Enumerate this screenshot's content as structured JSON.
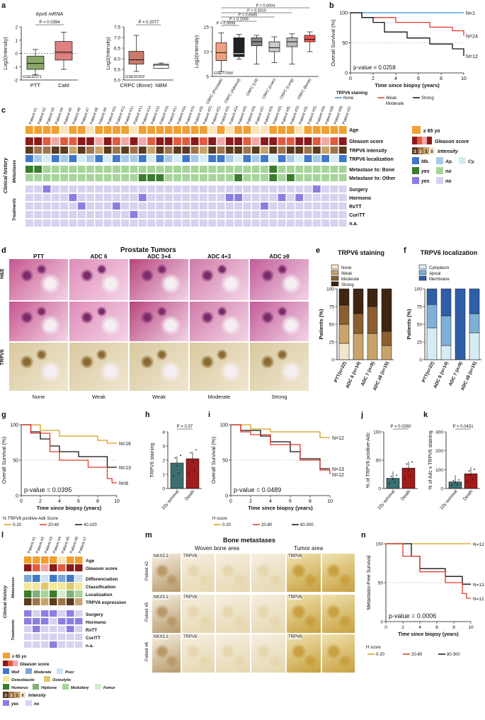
{
  "panel_letters": [
    "a",
    "b",
    "c",
    "d",
    "e",
    "f",
    "g",
    "h",
    "i",
    "j",
    "k",
    "l",
    "m",
    "n"
  ],
  "colors": {
    "red": "#e0392b",
    "black": "#111111",
    "blue": "#3b8fe0",
    "gold": "#d4a017",
    "green": "#2e7d32",
    "age": "#f0a030",
    "grid": "#cccccc"
  },
  "panel_a": {
    "plot1": {
      "title": "trpv6 mRNA",
      "ylabel": "Log2(Intensity)",
      "dataset": "GSE32571",
      "p": "P = 0.0394",
      "categories": [
        "PTT",
        "CaM"
      ],
      "boxes": [
        {
          "min": -1.6,
          "q1": -1.2,
          "med": -0.75,
          "q3": -0.2,
          "max": 0.3,
          "color": "#8aa86a"
        },
        {
          "min": -1.2,
          "q1": -0.5,
          "med": 0.1,
          "q3": 0.9,
          "max": 1.6,
          "color": "#e08080"
        }
      ],
      "ylim": [
        -2,
        2
      ],
      "ticks": [
        "-2",
        "-1",
        "0",
        "1",
        "2"
      ]
    },
    "plot2": {
      "ylabel": "Log2(Intensity)",
      "dataset": "GSE32269",
      "p": "P = 0.2077",
      "categories": [
        "CRPC (Bone)",
        "NBM"
      ],
      "boxes": [
        {
          "min": 5.4,
          "q1": 5.75,
          "med": 5.95,
          "q3": 6.35,
          "max": 7.1,
          "color": "#c97a6a"
        },
        {
          "min": 5.55,
          "q1": 5.55,
          "med": 5.7,
          "q3": 5.75,
          "max": 5.8,
          "color": "#ffffff"
        }
      ],
      "ylim": [
        5,
        7.5
      ],
      "ticks": [
        "5.0",
        "5.5",
        "6.0",
        "6.5",
        "7.0",
        "7.5"
      ]
    },
    "plot3": {
      "ylabel": "Log2(Intensity)",
      "dataset": "GSE77930",
      "categories": [
        "CRPC (Prostate)",
        "CRPC (Adrenal)",
        "CRPC (LN)",
        "CRPC (Liver)",
        "CRPC (Lung)",
        "CRPC (Bone)"
      ],
      "pvalues": [
        "P > 0.9999",
        "P = 0.2069",
        "P = 0.6585",
        "P = 0.3010",
        "P = 0.0004"
      ],
      "boxes": [
        {
          "min": 6,
          "q1": 8.2,
          "med": 9.8,
          "q3": 11.8,
          "max": 13.8,
          "color": "#f0a080"
        },
        {
          "min": 8.5,
          "q1": 9,
          "med": 9.6,
          "q3": 12.8,
          "max": 13.5,
          "color": "#222222"
        },
        {
          "min": 7.5,
          "q1": 11.2,
          "med": 12,
          "q3": 12.8,
          "max": 13.3,
          "color": "#888888"
        },
        {
          "min": 7.8,
          "q1": 10,
          "med": 10.8,
          "q3": 12,
          "max": 13,
          "color": "#cccccc"
        },
        {
          "min": 7.5,
          "q1": 11,
          "med": 12,
          "q3": 12.8,
          "max": 13.6,
          "color": "#bbbbbb"
        },
        {
          "min": 10,
          "q1": 12,
          "med": 12.5,
          "q3": 13.3,
          "max": 14,
          "color": "#f05050"
        }
      ],
      "ylim": [
        5,
        15
      ],
      "ticks": [
        "5",
        "10",
        "15"
      ]
    }
  },
  "panel_b": {
    "ylabel": "Overall Survival (%)",
    "xlabel": "Time since biopsy (years)",
    "pvalue": "p-value = 0.0258",
    "legend_title": "TRPV6 staining",
    "legend": [
      "None",
      "Weak",
      "Moderate",
      "Strong"
    ],
    "n_labels": [
      "N=1",
      "N=24",
      "N=12"
    ],
    "xticks": [
      "0",
      "2",
      "4",
      "6",
      "8",
      "10"
    ],
    "yticks": [
      "0",
      "25",
      "50",
      "75",
      "100"
    ]
  },
  "panel_c": {
    "patients": [
      "Patient #1",
      "Patient #2",
      "Patient #3",
      "Patient #4",
      "Patient #5",
      "Patient #6",
      "Patient #7",
      "Patient #8",
      "Patient #9",
      "Patient #10",
      "Patient #11",
      "Patient #12",
      "Patient #13",
      "Patient #14",
      "Patient #15",
      "Patient #16",
      "Patient #17",
      "Patient #18",
      "Patient #19",
      "Patient #20",
      "Patient #21",
      "Patient #22",
      "Patient #23",
      "Patient #24",
      "Patient #25",
      "Patient #26",
      "Patient #27",
      "Patient #28",
      "Patient #29",
      "Patient #30",
      "Patient #31",
      "Patient #32",
      "Patient #33",
      "Patient #34",
      "Patient #35",
      "Patient #36",
      "Patient #37"
    ],
    "row_labels": [
      "Age",
      "Gleason score",
      "TRPV6 intensity",
      "TRPV6 localization",
      "Metastase to: Bone",
      "Metastase to: Other",
      "Surgery",
      "Hormono",
      "RxTT",
      "CuriTT",
      "n.a."
    ],
    "group_labels": [
      "Clinical history",
      "Metastases",
      "Treatments"
    ],
    "legend": [
      "≥ 65 yo",
      "Gleason score",
      "3",
      "2",
      "1",
      "0",
      "Intensity",
      "Mb.",
      "Ap.",
      "Cy.",
      "yes",
      "no",
      "yes",
      "no"
    ]
  },
  "panel_d": {
    "title": "Prostate Tumors",
    "columns": [
      "PTT",
      "ADC 6",
      "ADC 3+4",
      "ADC 4+3",
      "ADC ≥8"
    ],
    "rows": [
      "H&E",
      "TRPV6"
    ],
    "bottom_labels": [
      "None",
      "Weak",
      "Weak",
      "Moderate",
      "Strong"
    ]
  },
  "panel_e": {
    "chart_data": {
      "type": "bar",
      "title": "TRPV6 staining",
      "ylabel": "Patients (%)",
      "categories": [
        "PTT(n=22)",
        "ADC 6 (n=14)",
        "ADC 7 (n=8)",
        "ADC ≥8 (n=15)"
      ],
      "series": [
        {
          "name": "None",
          "values": [
            23,
            0,
            0,
            0
          ]
        },
        {
          "name": "Weak",
          "values": [
            27,
            37,
            37,
            20
          ]
        },
        {
          "name": "Moderate",
          "values": [
            27,
            28,
            38,
            20
          ]
        },
        {
          "name": "Strong",
          "values": [
            23,
            35,
            25,
            60
          ]
        }
      ],
      "ylim": [
        0,
        100
      ]
    }
  },
  "panel_f": {
    "chart_data": {
      "type": "bar",
      "title": "TRPV6 localization",
      "ylabel": "Patients (%)",
      "categories": [
        "PTT(n=22)",
        "ADC 6 (n=14)",
        "ADC 7 (n=8)",
        "ADC ≥8 (n=15)"
      ],
      "series": [
        {
          "name": "Cytoplasm",
          "values": [
            45,
            20,
            0,
            38
          ]
        },
        {
          "name": "Apical",
          "values": [
            33,
            42,
            0,
            27
          ]
        },
        {
          "name": "Membrane",
          "values": [
            22,
            38,
            100,
            35
          ]
        }
      ],
      "ylim": [
        0,
        100
      ]
    }
  },
  "panel_g": {
    "ylabel": "Overall Survival (%)",
    "xlabel": "Time since biopsy (years)",
    "pvalue": "p-value = 0.0395",
    "legend_title": "% TRPV6 positive-Adk Score",
    "legend": [
      "0-20",
      "20-40",
      "40-100"
    ],
    "n_labels": [
      "N=16",
      "N=13",
      "N=8"
    ]
  },
  "panel_h": {
    "chart_data": {
      "type": "bar",
      "ylabel": "TRPV6 staining",
      "categories": [
        "10y survival",
        "Death"
      ],
      "values": [
        1.8,
        2.1
      ],
      "ylim": [
        0,
        4
      ]
    },
    "p": "P = 0.37"
  },
  "panel_i": {
    "ylabel": "Overall Survival (%)",
    "xlabel": "Time since biopsy (years)",
    "pvalue": "p-value = 0.0489",
    "legend_title": "H score",
    "legend": [
      "0-20",
      "20-80",
      "80-300"
    ],
    "n_labels": [
      "N=12",
      "N=13",
      "N=12"
    ]
  },
  "panel_j": {
    "chart_data": {
      "type": "bar",
      "ylabel": "% of TRPV6 positive-Adc",
      "categories": [
        "10y survival",
        "Death"
      ],
      "values": [
        18,
        36
      ],
      "ylim": [
        0,
        100
      ]
    },
    "p": "P = 0.0260"
  },
  "panel_k": {
    "chart_data": {
      "type": "bar",
      "ylabel": "% of Adc x TRPV6 staining",
      "categories": [
        "10y survival",
        "Death"
      ],
      "values": [
        35,
        78
      ],
      "ylim": [
        0,
        300
      ]
    },
    "p": "P = 0.0431"
  },
  "panel_l": {
    "patients": [
      "Patient #1",
      "Patient #2",
      "Patient #3",
      "Patient #4",
      "Patient #5",
      "Patient #6",
      "Patient #7"
    ],
    "row_labels": [
      "Age",
      "Gleason score",
      "Differenciation",
      "Classification",
      "Localization",
      "TRPV6 expression",
      "Surgery",
      "Hormono",
      "RxTT",
      "CuriTT",
      "n.a."
    ],
    "group_labels": [
      "Clinical history",
      "Metastases",
      "Treatments"
    ],
    "legend": [
      "≥ 65 yo",
      "Gleason score",
      "Well",
      "Moderate",
      "Poor",
      "Osteoblastic",
      "Osteolytic",
      "Humerus",
      "Hipbone",
      "Medullary",
      "Femur",
      "3",
      "2",
      "1",
      "0",
      "Intensity",
      "yes",
      "no"
    ]
  },
  "panel_m": {
    "title": "Bone metastases",
    "col_groups": [
      "Woven bone area",
      "Tumor area"
    ],
    "rows": [
      "Patient #2",
      "Patient #5",
      "Patient #6"
    ],
    "stains": [
      "NKX3.1",
      "TRPV6",
      "TRPV6"
    ]
  },
  "panel_n": {
    "ylabel": "Metastasis-Free Survival",
    "xlabel": "Time since biopsy (years)",
    "pvalue": "p-value = 0.0006",
    "legend_title": "H score",
    "legend": [
      "0-20",
      "20-80",
      "80-300"
    ],
    "n_labels": [
      "N=12",
      "N=13",
      "N=12"
    ]
  }
}
